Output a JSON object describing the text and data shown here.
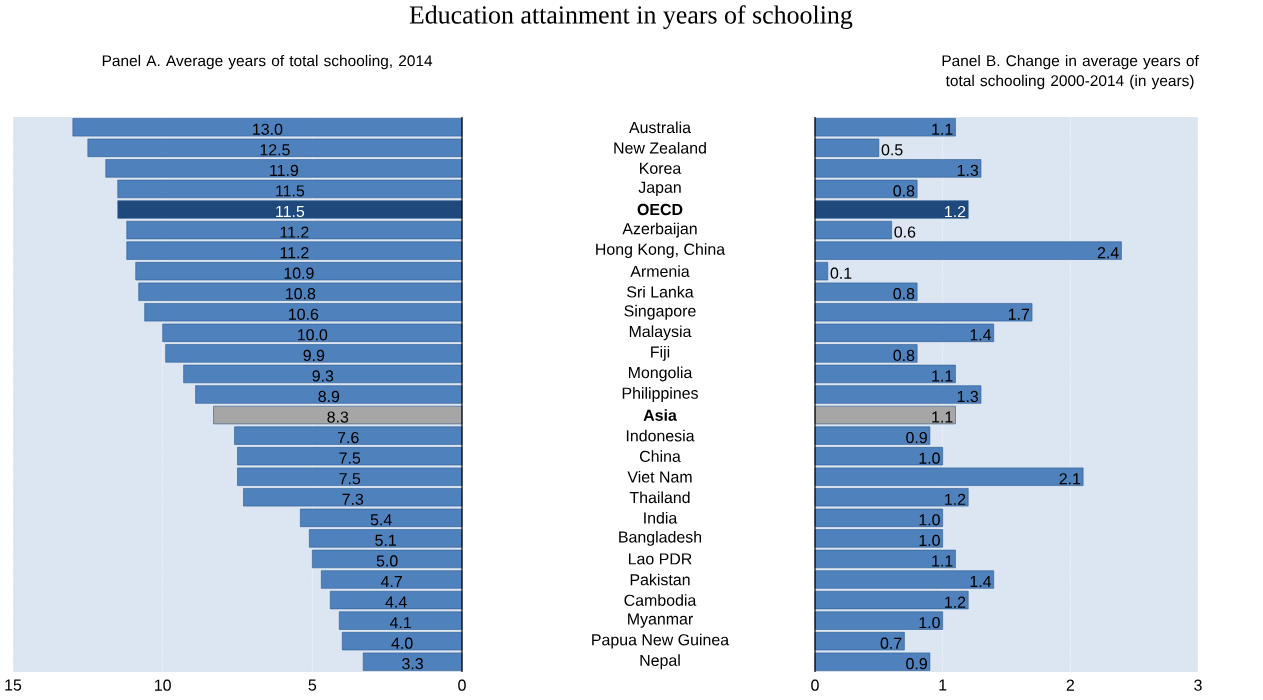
{
  "chart_data": [
    {
      "type": "bar",
      "orientation": "horizontal",
      "title": "Education attainment in years of schooling",
      "subtitle": "Panel A. Average years of total schooling,  2014",
      "values": [
        13.0,
        12.5,
        11.9,
        11.5,
        11.5,
        11.2,
        11.2,
        10.9,
        10.8,
        10.6,
        10.0,
        9.9,
        9.3,
        8.9,
        8.3,
        7.6,
        7.5,
        7.5,
        7.3,
        5.4,
        5.1,
        5.0,
        4.7,
        4.4,
        4.1,
        4.0,
        3.3
      ],
      "value_labels": [
        "13.0",
        "12.5",
        "11.9",
        "11.5",
        "11.5",
        "11.2",
        "11.2",
        "10.9",
        "10.8",
        "10.6",
        "10.0",
        "9.9",
        "9.3",
        "8.9",
        "8.3",
        "7.6",
        "7.5",
        "7.5",
        "7.3",
        "5.4",
        "5.1",
        "5.0",
        "4.7",
        "4.4",
        "4.1",
        "4.0",
        "3.3"
      ],
      "color": "#4f81bd",
      "colors": [
        "#4f81bd",
        "#4f81bd",
        "#4f81bd",
        "#4f81bd",
        "#1f497d",
        "#4f81bd",
        "#4f81bd",
        "#4f81bd",
        "#4f81bd",
        "#4f81bd",
        "#4f81bd",
        "#4f81bd",
        "#4f81bd",
        "#4f81bd",
        "#a6a6a6",
        "#4f81bd",
        "#4f81bd",
        "#4f81bd",
        "#4f81bd",
        "#4f81bd",
        "#4f81bd",
        "#4f81bd",
        "#4f81bd",
        "#4f81bd",
        "#4f81bd",
        "#4f81bd",
        "#4f81bd"
      ],
      "xlim": [
        15,
        0
      ],
      "xticks": [
        15,
        10,
        5,
        0
      ],
      "grid": "x",
      "tick_labels": "x"
    },
    {
      "type": "bar",
      "orientation": "horizontal",
      "subtitle": "Panel B. Change in average years of total schooling 2000-2014 (in years)",
      "categories": [
        "Australia",
        "New Zealand",
        "Korea",
        "Japan",
        "OECD",
        "Azerbaijan",
        "Hong Kong, China",
        "Armenia",
        "Sri Lanka",
        "Singapore",
        "Malaysia",
        "Fiji",
        "Mongolia",
        "Philippines",
        "Asia",
        "Indonesia",
        "China",
        "Viet Nam",
        "Thailand",
        "India",
        "Bangladesh",
        "Lao PDR",
        "Pakistan",
        "Cambodia",
        "Myanmar",
        "Papua New Guinea",
        "Nepal"
      ],
      "values": [
        1.1,
        0.5,
        1.3,
        0.8,
        1.2,
        0.6,
        2.4,
        0.1,
        0.8,
        1.7,
        1.4,
        0.8,
        1.1,
        1.3,
        1.1,
        0.9,
        1.0,
        2.1,
        1.2,
        1.0,
        1.0,
        1.1,
        1.4,
        1.2,
        1.0,
        0.7,
        0.9
      ],
      "value_labels": [
        "1.1",
        "0.5",
        "1.3",
        "0.8",
        "1.2",
        "0.6",
        "2.4",
        "0.1",
        "0.8",
        "1.7",
        "1.4",
        "0.8",
        "1.1",
        "1.3",
        "1.1",
        "0.9",
        "1.0",
        "2.1",
        "1.2",
        "1.0",
        "1.0",
        "1.1",
        "1.4",
        "1.2",
        "1.0",
        "0.7",
        "0.9"
      ],
      "color": "#4f81bd",
      "colors": [
        "#4f81bd",
        "#4f81bd",
        "#4f81bd",
        "#4f81bd",
        "#1f497d",
        "#4f81bd",
        "#4f81bd",
        "#4f81bd",
        "#4f81bd",
        "#4f81bd",
        "#4f81bd",
        "#4f81bd",
        "#4f81bd",
        "#4f81bd",
        "#a6a6a6",
        "#4f81bd",
        "#4f81bd",
        "#4f81bd",
        "#4f81bd",
        "#4f81bd",
        "#4f81bd",
        "#4f81bd",
        "#4f81bd",
        "#4f81bd",
        "#4f81bd",
        "#4f81bd",
        "#4f81bd"
      ],
      "xlim": [
        0,
        3
      ],
      "xticks": [
        0,
        1,
        2,
        3
      ],
      "grid": "x"
    }
  ]
}
